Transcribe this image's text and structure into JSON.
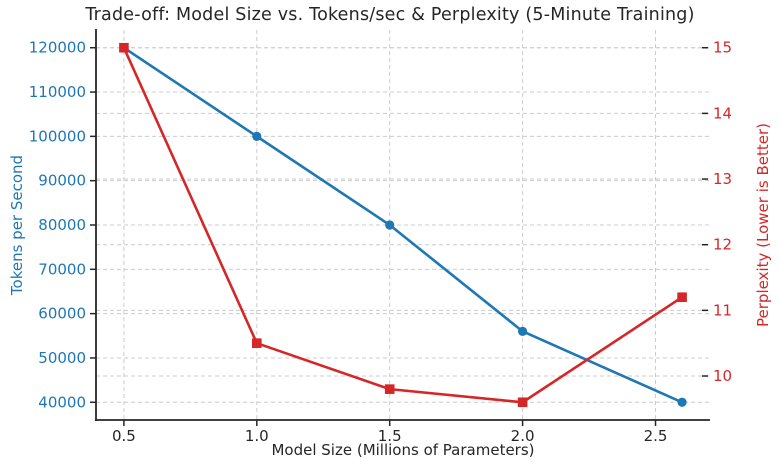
{
  "title": "Trade-off: Model Size vs. Tokens/sec & Perplexity (5-Minute Training)",
  "colors": {
    "tokens_series": "#1f77b4",
    "perplexity_series": "#d62728",
    "grid": "#cccccc",
    "spine": "#262626",
    "tick": "#262626",
    "x_tick_label": "#262626",
    "title_text": "#262626",
    "background": "#ffffff"
  },
  "chart_data": {
    "type": "line",
    "title": "Trade-off: Model Size vs. Tokens/sec & Perplexity (5-Minute Training)",
    "xlabel": "Model Size (Millions of Parameters)",
    "grid": true,
    "grid_style": "dashed",
    "legend_position": "none",
    "x": [
      0.5,
      1.0,
      1.5,
      2.0,
      2.6
    ],
    "series": [
      {
        "name": "Tokens per Second",
        "axis": "left",
        "color": "#1f77b4",
        "marker": "circle",
        "values": [
          120000,
          100000,
          80000,
          56000,
          40000
        ]
      },
      {
        "name": "Perplexity (Lower is Better)",
        "axis": "right",
        "color": "#d62728",
        "marker": "square",
        "values": [
          15,
          10.5,
          9.8,
          9.6,
          11.2
        ]
      }
    ],
    "x_axis": {
      "ticks": [
        0.5,
        1.0,
        1.5,
        2.0,
        2.5
      ],
      "tick_labels": [
        "0.5",
        "1.0",
        "1.5",
        "2.0",
        "2.5"
      ],
      "lim": [
        0.395,
        2.705
      ]
    },
    "left_axis": {
      "label": "Tokens per Second",
      "ticks": [
        40000,
        50000,
        60000,
        70000,
        80000,
        90000,
        100000,
        110000,
        120000
      ],
      "tick_labels": [
        "40000",
        "50000",
        "60000",
        "70000",
        "80000",
        "90000",
        "100000",
        "110000",
        "120000"
      ],
      "lim": [
        36000,
        124000
      ]
    },
    "right_axis": {
      "label": "Perplexity (Lower is Better)",
      "ticks": [
        10,
        11,
        12,
        13,
        14,
        15
      ],
      "tick_labels": [
        "10",
        "11",
        "12",
        "13",
        "14",
        "15"
      ],
      "lim": [
        9.33,
        15.27
      ]
    }
  }
}
